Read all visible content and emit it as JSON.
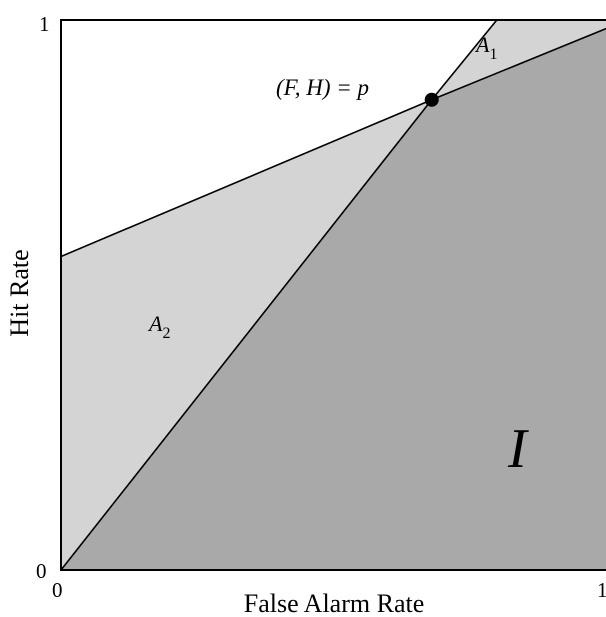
{
  "chart_data": {
    "type": "area",
    "xlabel": "False Alarm Rate",
    "ylabel": "Hit Rate",
    "xlim": [
      0,
      1
    ],
    "ylim": [
      0,
      1
    ],
    "x_ticks": [
      "0",
      "1"
    ],
    "y_ticks": [
      "0",
      "1"
    ],
    "grid": false,
    "point": {
      "x": 0.655,
      "y": 0.855,
      "label": "(F, H) = p"
    },
    "lines": [
      {
        "points": [
          [
            0,
            0
          ],
          [
            0.655,
            0.855
          ],
          [
            0.77,
            1
          ]
        ]
      },
      {
        "points": [
          [
            0,
            0.57
          ],
          [
            0.655,
            0.855
          ],
          [
            1,
            1
          ]
        ]
      }
    ],
    "regions": [
      {
        "label": "A1",
        "color": "#d4d4d4"
      },
      {
        "label": "A2",
        "color": "#d4d4d4"
      },
      {
        "label": "I",
        "color": "#a9a9a9"
      }
    ],
    "annotations": {
      "point_label": "(F, H) = p",
      "a1_base": "A",
      "a1_sub": "1",
      "a2_base": "A",
      "a2_sub": "2",
      "region_i": "I"
    }
  }
}
